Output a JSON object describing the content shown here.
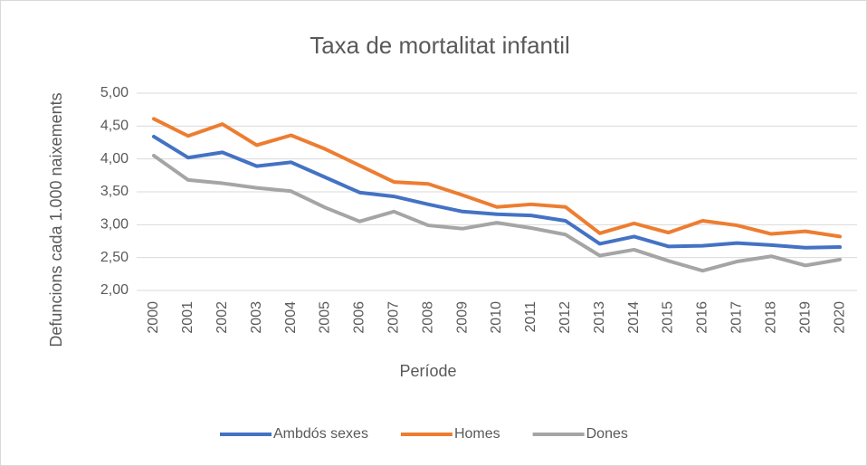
{
  "chart_data": {
    "type": "line",
    "title": "Taxa de mortalitat infantil",
    "x_label": "Període",
    "y_label": "Defuncions cada 1.000 naixements",
    "categories": [
      "2000",
      "2001",
      "2002",
      "2003",
      "2004",
      "2005",
      "2006",
      "2007",
      "2008",
      "2009",
      "2010",
      "2011",
      "2012",
      "2013",
      "2014",
      "2015",
      "2016",
      "2017",
      "2018",
      "2019",
      "2020"
    ],
    "series": [
      {
        "name": "Ambdós sexes",
        "color": "#4472c4",
        "values": [
          4.34,
          4.02,
          4.1,
          3.89,
          3.95,
          3.72,
          3.49,
          3.43,
          3.31,
          3.2,
          3.16,
          3.14,
          3.06,
          2.71,
          2.82,
          2.67,
          2.68,
          2.72,
          2.69,
          2.65,
          2.66
        ]
      },
      {
        "name": "Homes",
        "color": "#ed7d31",
        "values": [
          4.61,
          4.35,
          4.53,
          4.21,
          4.36,
          4.15,
          3.9,
          3.65,
          3.62,
          3.45,
          3.27,
          3.31,
          3.27,
          2.87,
          3.02,
          2.88,
          3.06,
          2.99,
          2.86,
          2.9,
          2.82
        ]
      },
      {
        "name": "Dones",
        "color": "#a5a5a5",
        "values": [
          4.05,
          3.68,
          3.63,
          3.56,
          3.51,
          3.26,
          3.05,
          3.2,
          2.99,
          2.94,
          3.03,
          2.95,
          2.85,
          2.53,
          2.62,
          2.45,
          2.3,
          2.44,
          2.52,
          2.38,
          2.47
        ]
      }
    ],
    "ylim": [
      2,
      5
    ],
    "yticks": [
      {
        "value": 2,
        "label": "2,00"
      },
      {
        "value": 2.5,
        "label": "2,50"
      },
      {
        "value": 3,
        "label": "3,00"
      },
      {
        "value": 3.5,
        "label": "3,50"
      },
      {
        "value": 4,
        "label": "4,00"
      },
      {
        "value": 4.5,
        "label": "4,50"
      },
      {
        "value": 5,
        "label": "5,00"
      }
    ],
    "grid": true,
    "legend": "bottom"
  }
}
